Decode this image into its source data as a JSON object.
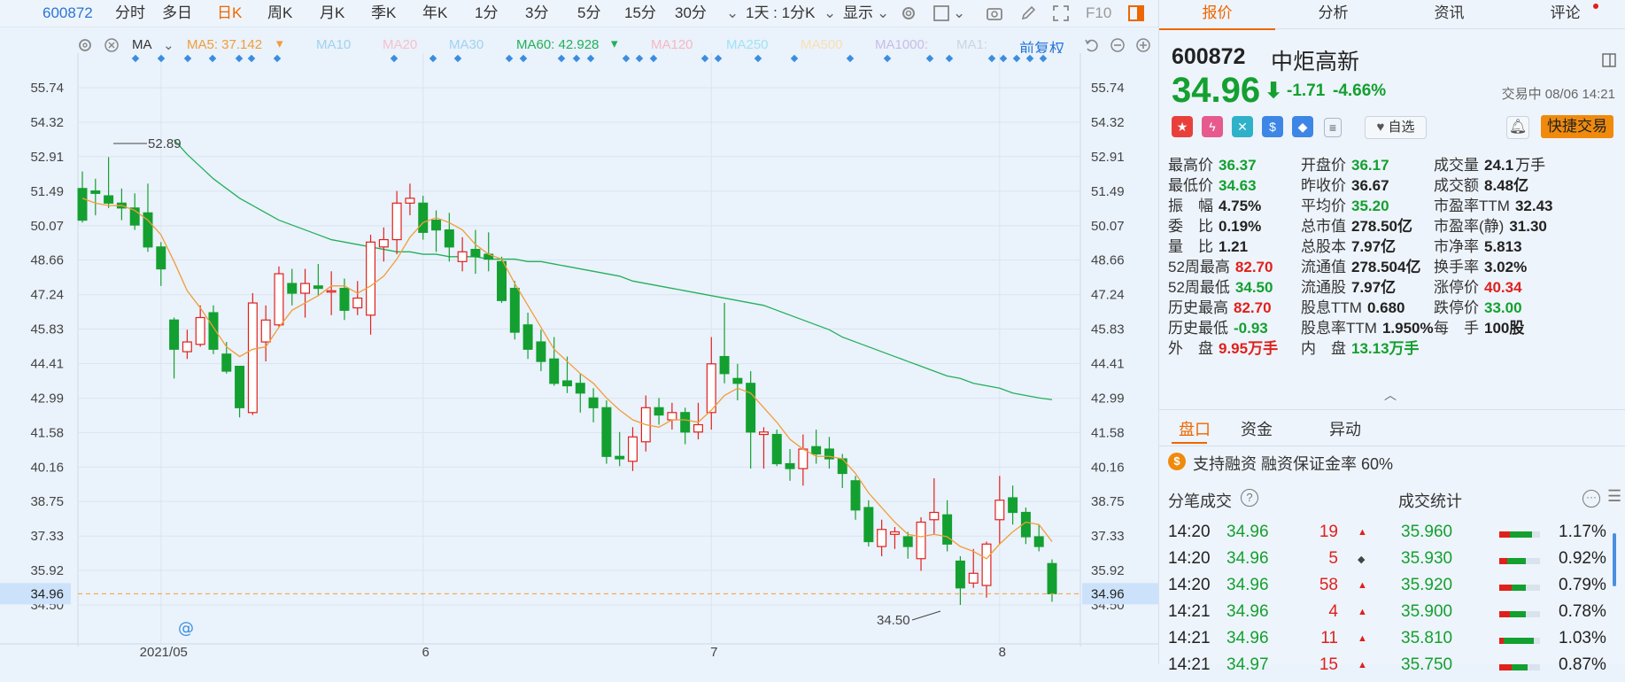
{
  "toolbar": {
    "code": "600872",
    "periods": [
      "分时",
      "多日",
      "日K",
      "周K",
      "月K",
      "季K",
      "年K",
      "1分",
      "3分",
      "5分",
      "15分",
      "30分"
    ],
    "active_period": "日K",
    "range": "1天 : 1分K",
    "display": "显示",
    "f10": "F10"
  },
  "ma_bar": {
    "label": "MA",
    "ma5": "MA5: 37.142",
    "ma10": "MA10",
    "ma20": "MA20",
    "ma30": "MA30",
    "ma60": "MA60: 42.928",
    "ma120": "MA120",
    "ma250": "MA250",
    "ma500": "MA500",
    "ma1000": "MA1000:",
    "ma1": "MA1:",
    "adjust": "前复权",
    "colors": {
      "ma5": "#f29d38",
      "ma60": "#22b05a",
      "faded": "#9fd3f0"
    }
  },
  "chart_data": {
    "type": "candlestick",
    "y_ticks": [
      "55.74",
      "54.32",
      "52.91",
      "51.49",
      "50.07",
      "48.66",
      "47.24",
      "45.83",
      "44.41",
      "42.99",
      "41.58",
      "40.16",
      "38.75",
      "37.33",
      "35.92",
      "34.50"
    ],
    "ylim": [
      34.5,
      55.74
    ],
    "x_ticks": [
      "2021/05",
      "6",
      "7",
      "8"
    ],
    "current_price_label": "34.96",
    "high_annotation": "52.89",
    "low_annotation": "34.50",
    "up_color": "#e0201c",
    "down_color": "#13a030",
    "candles": [
      [
        51.6,
        50.3,
        52.3,
        50.2
      ],
      [
        51.5,
        51.4,
        52.0,
        50.5
      ],
      [
        51.3,
        51.0,
        52.89,
        50.8
      ],
      [
        51.0,
        50.8,
        51.6,
        50.3
      ],
      [
        50.8,
        50.1,
        51.4,
        49.9
      ],
      [
        50.6,
        49.2,
        51.8,
        49.0
      ],
      [
        49.2,
        48.3,
        49.4,
        47.6
      ],
      [
        46.2,
        45.0,
        46.3,
        43.8
      ],
      [
        44.9,
        45.3,
        45.8,
        44.6
      ],
      [
        45.2,
        46.3,
        46.8,
        45.1
      ],
      [
        46.5,
        45.0,
        46.8,
        44.8
      ],
      [
        44.8,
        44.1,
        45.3,
        44.0
      ],
      [
        44.3,
        42.6,
        44.3,
        42.2
      ],
      [
        42.4,
        46.9,
        47.3,
        42.3
      ],
      [
        45.3,
        46.2,
        46.8,
        44.5
      ],
      [
        46.0,
        48.1,
        48.4,
        45.9
      ],
      [
        47.7,
        47.3,
        48.3,
        46.8
      ],
      [
        47.3,
        47.7,
        48.3,
        46.3
      ],
      [
        47.6,
        47.5,
        48.5,
        47.2
      ],
      [
        47.4,
        47.4,
        48.2,
        46.4
      ],
      [
        47.5,
        46.6,
        47.9,
        46.2
      ],
      [
        46.7,
        47.1,
        47.8,
        46.4
      ],
      [
        46.4,
        49.4,
        49.7,
        45.6
      ],
      [
        49.2,
        49.5,
        50.0,
        48.6
      ],
      [
        49.5,
        51.0,
        51.5,
        48.9
      ],
      [
        51.0,
        51.2,
        51.8,
        50.5
      ],
      [
        51.0,
        49.8,
        51.3,
        49.5
      ],
      [
        50.3,
        49.9,
        50.7,
        49.0
      ],
      [
        49.9,
        49.2,
        50.6,
        48.6
      ],
      [
        48.6,
        49.0,
        49.6,
        48.2
      ],
      [
        49.1,
        48.8,
        49.9,
        48.1
      ],
      [
        48.9,
        48.7,
        49.8,
        48.2
      ],
      [
        48.6,
        47.0,
        48.8,
        46.9
      ],
      [
        47.5,
        45.7,
        47.8,
        45.4
      ],
      [
        46.0,
        45.0,
        46.5,
        44.6
      ],
      [
        45.3,
        44.5,
        45.8,
        44.1
      ],
      [
        44.6,
        43.6,
        45.5,
        43.5
      ],
      [
        43.7,
        43.5,
        44.7,
        43.2
      ],
      [
        43.6,
        43.2,
        44.0,
        42.4
      ],
      [
        43.0,
        42.6,
        43.4,
        42.0
      ],
      [
        42.6,
        40.6,
        42.9,
        40.3
      ],
      [
        40.6,
        40.5,
        41.6,
        40.2
      ],
      [
        40.4,
        41.4,
        41.8,
        40.0
      ],
      [
        41.2,
        42.6,
        43.1,
        40.8
      ],
      [
        42.6,
        42.3,
        43.0,
        41.9
      ],
      [
        42.1,
        42.4,
        42.8,
        41.7
      ],
      [
        42.4,
        41.6,
        42.6,
        41.1
      ],
      [
        41.6,
        41.9,
        42.8,
        41.3
      ],
      [
        42.4,
        44.4,
        45.5,
        41.7
      ],
      [
        44.7,
        44.0,
        46.9,
        43.6
      ],
      [
        43.8,
        43.6,
        44.4,
        42.9
      ],
      [
        43.6,
        41.6,
        44.1,
        40.1
      ],
      [
        41.5,
        41.6,
        41.8,
        40.1
      ],
      [
        41.5,
        40.3,
        41.7,
        40.2
      ],
      [
        40.3,
        40.1,
        40.9,
        39.6
      ],
      [
        40.1,
        40.9,
        41.5,
        39.4
      ],
      [
        41.0,
        40.7,
        41.7,
        40.3
      ],
      [
        40.9,
        40.5,
        41.4,
        40.1
      ],
      [
        40.5,
        39.9,
        40.7,
        39.3
      ],
      [
        39.6,
        38.4,
        39.8,
        38.0
      ],
      [
        38.5,
        37.1,
        38.8,
        36.9
      ],
      [
        36.9,
        37.6,
        38.0,
        36.5
      ],
      [
        37.4,
        37.5,
        37.7,
        36.8
      ],
      [
        37.3,
        36.9,
        37.5,
        36.4
      ],
      [
        36.4,
        37.9,
        38.1,
        35.9
      ],
      [
        38.0,
        38.3,
        39.7,
        37.4
      ],
      [
        38.2,
        37.0,
        38.8,
        36.7
      ],
      [
        36.3,
        35.2,
        36.5,
        34.5
      ],
      [
        35.4,
        35.8,
        36.8,
        35.2
      ],
      [
        35.3,
        37.0,
        37.1,
        34.8
      ],
      [
        38.0,
        38.8,
        39.8,
        37.0
      ],
      [
        38.9,
        38.3,
        39.4,
        37.8
      ],
      [
        38.3,
        37.3,
        38.5,
        37.0
      ],
      [
        37.3,
        36.9,
        37.8,
        36.7
      ],
      [
        36.2,
        34.96,
        36.37,
        34.63
      ]
    ],
    "ma5": [
      51.2,
      51.0,
      50.9,
      50.9,
      50.7,
      50.3,
      49.7,
      48.6,
      47.4,
      46.7,
      45.9,
      45.1,
      44.7,
      45.0,
      45.1,
      45.9,
      46.6,
      46.9,
      47.2,
      47.6,
      47.6,
      47.3,
      47.6,
      48.0,
      48.7,
      49.6,
      50.2,
      50.4,
      50.2,
      49.9,
      49.3,
      48.9,
      48.7,
      47.7,
      46.8,
      45.9,
      45.0,
      44.5,
      44.0,
      43.6,
      43.0,
      42.5,
      42.1,
      41.9,
      41.8,
      42.1,
      42.1,
      42.0,
      42.5,
      43.1,
      43.4,
      43.2,
      42.6,
      42.0,
      41.3,
      40.9,
      40.6,
      40.6,
      40.5,
      39.9,
      39.1,
      38.5,
      37.9,
      37.4,
      37.3,
      37.4,
      37.3,
      36.9,
      36.7,
      36.4,
      37.0,
      37.5,
      37.9,
      37.8,
      37.1
    ],
    "ma60": [
      53.6,
      53.0,
      52.5,
      52.0,
      51.6,
      51.2,
      50.9,
      50.6,
      50.3,
      50.1,
      49.9,
      49.7,
      49.5,
      49.4,
      49.3,
      49.2,
      49.1,
      49.0,
      49.0,
      48.9,
      48.9,
      48.8,
      48.8,
      48.8,
      48.7,
      48.7,
      48.7,
      48.6,
      48.6,
      48.5,
      48.4,
      48.3,
      48.2,
      48.1,
      48.0,
      47.8,
      47.7,
      47.6,
      47.5,
      47.4,
      47.3,
      47.2,
      47.1,
      47.0,
      46.9,
      46.8,
      46.6,
      46.4,
      46.2,
      46.0,
      45.8,
      45.5,
      45.3,
      45.1,
      44.9,
      44.7,
      44.5,
      44.3,
      44.1,
      43.9,
      43.8,
      43.6,
      43.5,
      43.4,
      43.2,
      43.1,
      43.0,
      42.93
    ]
  },
  "quote": {
    "code": "600872",
    "name": "中炬高新",
    "price": "34.96",
    "arrow": "⬇",
    "change": "-1.71",
    "change_pct": "-4.66%",
    "status": "交易中 08/06 14:21",
    "zixuan": "自选",
    "quick_trade": "快捷交易",
    "fields": [
      {
        "label": "最高价",
        "value": "36.37",
        "color": "green"
      },
      {
        "label": "开盘价",
        "value": "36.17",
        "color": "green"
      },
      {
        "label": "成交量",
        "value": "24.1",
        "unit": "万手",
        "color": "dark"
      },
      {
        "label": "最低价",
        "value": "34.63",
        "color": "green"
      },
      {
        "label": "昨收价",
        "value": "36.67",
        "color": "dark"
      },
      {
        "label": "成交额",
        "value": "8.48亿",
        "color": "dark"
      },
      {
        "label": "振　幅",
        "value": "4.75%",
        "color": "dark"
      },
      {
        "label": "平均价",
        "value": "35.20",
        "color": "green"
      },
      {
        "label": "市盈率TTM",
        "value": "32.43",
        "color": "dark"
      },
      {
        "label": "委　比",
        "value": "0.19%",
        "color": "dark"
      },
      {
        "label": "总市值",
        "value": "278.50亿",
        "color": "dark"
      },
      {
        "label": "市盈率(静)",
        "value": "31.30",
        "color": "dark"
      },
      {
        "label": "量　比",
        "value": "1.21",
        "color": "dark"
      },
      {
        "label": "总股本",
        "value": "7.97亿",
        "color": "dark"
      },
      {
        "label": "市净率",
        "value": "5.813",
        "color": "dark"
      },
      {
        "label": "52周最高",
        "value": "82.70",
        "color": "red"
      },
      {
        "label": "流通值",
        "value": "278.504亿",
        "color": "dark"
      },
      {
        "label": "换手率",
        "value": "3.02%",
        "color": "dark"
      },
      {
        "label": "52周最低",
        "value": "34.50",
        "color": "green"
      },
      {
        "label": "流通股",
        "value": "7.97亿",
        "color": "dark"
      },
      {
        "label": "涨停价",
        "value": "40.34",
        "color": "red"
      },
      {
        "label": "历史最高",
        "value": "82.70",
        "color": "red"
      },
      {
        "label": "股息TTM",
        "value": "0.680",
        "color": "dark"
      },
      {
        "label": "跌停价",
        "value": "33.00",
        "color": "green"
      },
      {
        "label": "历史最低",
        "value": "-0.93",
        "color": "green"
      },
      {
        "label": "股息率TTM",
        "value": "1.950%",
        "color": "dark"
      },
      {
        "label": "每　手",
        "value": "100股",
        "color": "dark"
      },
      {
        "label": "外　盘",
        "value": "9.95万手",
        "color": "red"
      },
      {
        "label": "内　盘",
        "value": "13.13万手",
        "color": "green"
      }
    ]
  },
  "right_tabs": [
    "报价",
    "分析",
    "资讯",
    "评论"
  ],
  "sub_tabs": [
    "盘口",
    "资金",
    "异动"
  ],
  "notice": "支持融资 融资保证金率 60%",
  "trades": {
    "header_left": "分笔成交",
    "header_right": "成交统计",
    "rows": [
      {
        "time": "14:20",
        "price": "34.96",
        "vol": "19",
        "dir": "▲",
        "stat_price": "35.960",
        "pct": "1.17%",
        "red": 0.25,
        "green": 0.55
      },
      {
        "time": "14:20",
        "price": "34.96",
        "vol": "5",
        "dir": "◆",
        "stat_price": "35.930",
        "pct": "0.92%",
        "red": 0.2,
        "green": 0.45
      },
      {
        "time": "14:20",
        "price": "34.96",
        "vol": "58",
        "dir": "▲",
        "stat_price": "35.920",
        "pct": "0.79%",
        "red": 0.3,
        "green": 0.35
      },
      {
        "time": "14:21",
        "price": "34.96",
        "vol": "4",
        "dir": "▲",
        "stat_price": "35.900",
        "pct": "0.78%",
        "red": 0.25,
        "green": 0.4
      },
      {
        "time": "14:21",
        "price": "34.96",
        "vol": "11",
        "dir": "▲",
        "stat_price": "35.810",
        "pct": "1.03%",
        "red": 0.1,
        "green": 0.75
      },
      {
        "time": "14:21",
        "price": "34.97",
        "vol": "15",
        "dir": "▲",
        "stat_price": "35.750",
        "pct": "0.87%",
        "red": 0.3,
        "green": 0.4
      }
    ]
  }
}
